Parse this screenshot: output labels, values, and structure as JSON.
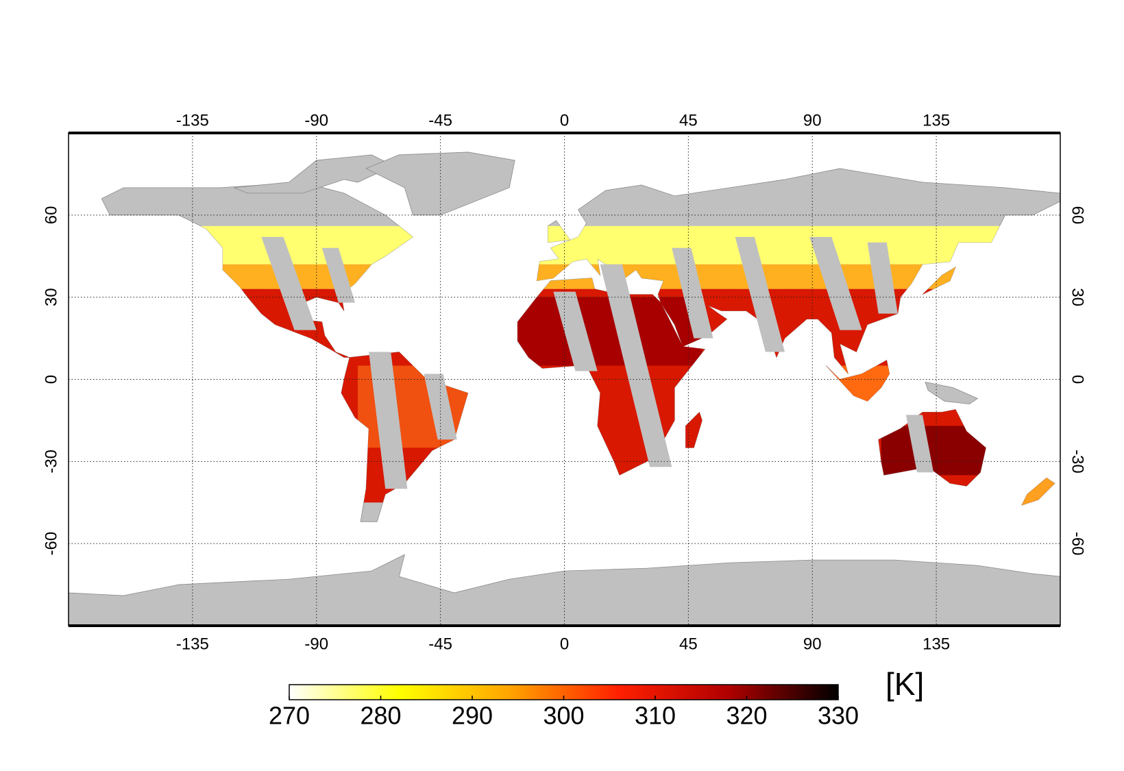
{
  "map": {
    "xlim": [
      -180,
      180
    ],
    "ylim": [
      -90,
      90
    ],
    "xticks": [
      -135,
      -90,
      -45,
      0,
      45,
      90,
      135
    ],
    "yticks": [
      -60,
      -30,
      0,
      30,
      60
    ],
    "grid": true
  },
  "colorbar": {
    "label": "[K]",
    "lim": [
      270,
      330
    ],
    "ticks": [
      270,
      280,
      290,
      300,
      310,
      320,
      330
    ],
    "colors": [
      "#ffffff",
      "#ffff00",
      "#ffa500",
      "#ff2000",
      "#b00000",
      "#000000"
    ]
  }
}
